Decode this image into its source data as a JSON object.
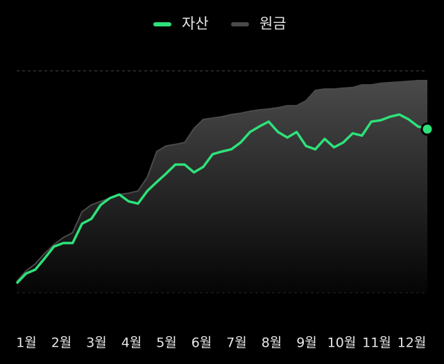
{
  "chart_data": {
    "type": "line",
    "x_axis_labels": [
      "1월",
      "2월",
      "3월",
      "4월",
      "5월",
      "6월",
      "7월",
      "8월",
      "9월",
      "10월",
      "11월",
      "12월"
    ],
    "ylim": [
      0,
      100
    ],
    "series": [
      {
        "name": "자산",
        "color": "#2ee27a",
        "values": [
          4.1,
          8.5,
          10.3,
          15.4,
          20.7,
          22.3,
          22.3,
          31.0,
          33.2,
          39.5,
          42.6,
          44.2,
          41.1,
          40.1,
          45.8,
          49.8,
          53.6,
          57.7,
          57.7,
          54.2,
          56.7,
          62.4,
          63.6,
          64.6,
          67.7,
          72.4,
          74.9,
          77.1,
          72.4,
          69.9,
          72.4,
          66.1,
          64.6,
          69.3,
          65.5,
          67.7,
          71.8,
          70.8,
          77.1,
          77.7,
          79.3,
          80.3,
          78.1,
          74.9,
          73.7
        ]
      },
      {
        "name": "원금",
        "color": "#4a4a4a",
        "values": [
          5.0,
          9.7,
          12.9,
          17.6,
          21.6,
          24.8,
          27.0,
          36.4,
          39.5,
          41.1,
          42.6,
          44.2,
          44.8,
          45.8,
          52.0,
          63.6,
          66.1,
          66.8,
          67.7,
          74.0,
          78.1,
          78.7,
          79.3,
          80.3,
          80.9,
          81.8,
          82.4,
          82.8,
          83.4,
          84.3,
          84.3,
          86.5,
          91.2,
          91.8,
          91.8,
          92.2,
          92.5,
          93.7,
          93.7,
          94.4,
          94.7,
          95.0,
          95.3,
          95.6,
          95.6
        ]
      }
    ]
  }
}
